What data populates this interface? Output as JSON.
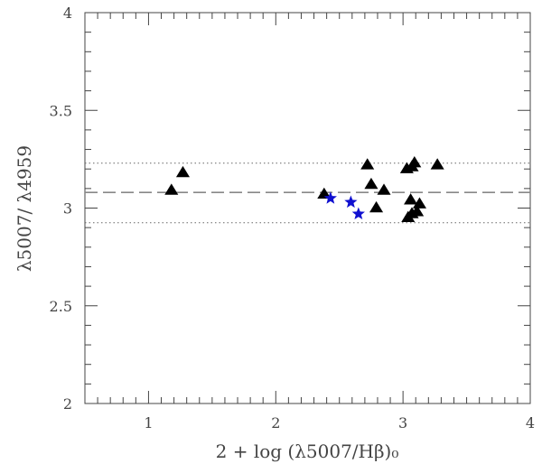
{
  "chart_data": {
    "type": "scatter",
    "title": "",
    "xlabel": "2  +  log (λ5007/Hβ)₀",
    "ylabel": "λ5007/ λ4959",
    "xlim": [
      0.5,
      4
    ],
    "ylim": [
      2,
      4
    ],
    "x_ticks": [
      "1",
      "2",
      "3",
      "4"
    ],
    "y_ticks": [
      "2",
      "2.5",
      "3",
      "3.5",
      "4"
    ],
    "x_tick_values": [
      1,
      2,
      3,
      4
    ],
    "y_tick_values": [
      2,
      2.5,
      3,
      3.5,
      4
    ],
    "grid": false,
    "reference_lines": [
      {
        "y": 3.08,
        "style": "dashed"
      },
      {
        "y": 3.23,
        "style": "dotted"
      },
      {
        "y": 2.925,
        "style": "dotted"
      }
    ],
    "series": [
      {
        "marker": "triangle",
        "color": "#000000",
        "points": [
          {
            "x": 1.18,
            "y": 3.09
          },
          {
            "x": 1.27,
            "y": 3.18
          },
          {
            "x": 2.38,
            "y": 3.07
          },
          {
            "x": 2.72,
            "y": 3.22
          },
          {
            "x": 2.75,
            "y": 3.12
          },
          {
            "x": 2.79,
            "y": 3.0
          },
          {
            "x": 2.85,
            "y": 3.09
          },
          {
            "x": 3.03,
            "y": 3.2
          },
          {
            "x": 3.07,
            "y": 3.21
          },
          {
            "x": 3.09,
            "y": 3.23
          },
          {
            "x": 3.27,
            "y": 3.22
          },
          {
            "x": 3.06,
            "y": 3.04
          },
          {
            "x": 3.13,
            "y": 3.02
          },
          {
            "x": 3.04,
            "y": 2.95
          },
          {
            "x": 3.07,
            "y": 2.97
          },
          {
            "x": 3.11,
            "y": 2.98
          }
        ]
      },
      {
        "marker": "star",
        "color": "#1010d0",
        "points": [
          {
            "x": 2.43,
            "y": 3.05
          },
          {
            "x": 2.59,
            "y": 3.03
          },
          {
            "x": 2.65,
            "y": 2.97
          }
        ]
      }
    ]
  }
}
